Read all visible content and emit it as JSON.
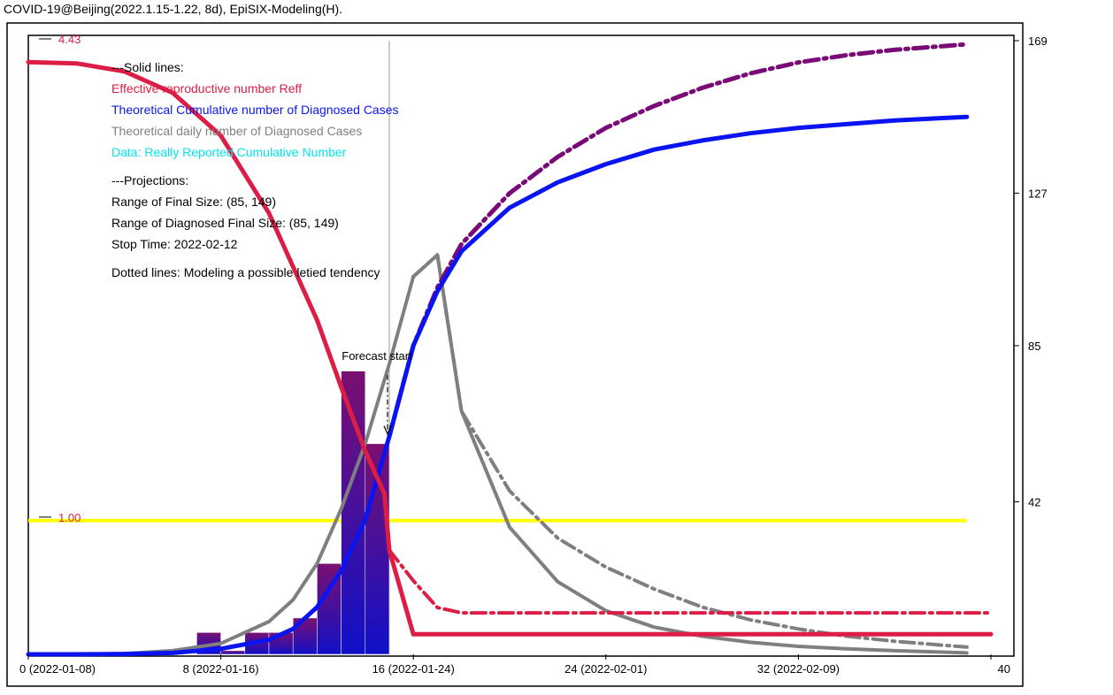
{
  "title": "COVID-19@Beijing(2022.1.15-1.22, 8d), EpiSIX-Modeling(H).",
  "legend": {
    "solid_header": "---Solid lines:",
    "reff_label": "Effective reproductive number Reff",
    "cum_label": "Theoretical Cumulative number of Diagnosed Cases",
    "daily_label": "Theoretical daily number of Diagnosed Cases",
    "data_label": "Data: Really Reported Cumulative Number",
    "proj_header": "---Projections:",
    "final_size": "Range of Final Size: (85, 149)",
    "diag_final_size": "Range of Diagnosed Final Size: (85, 149)",
    "stop_time": "Stop Time: 2022-02-12",
    "dotted_note": "Dotted lines: Modeling a possible letied tendency"
  },
  "colors": {
    "reff": "#dc1e46",
    "cumulative": "#0a14f0",
    "daily": "#7f7f7f",
    "data": "#00e5ee",
    "projection": "#7a0a78",
    "threshold": "#ffff00",
    "bar_top": "#7a1070",
    "bar_bottom": "#1010c8"
  },
  "chart_data": {
    "type": "line",
    "xlim": [
      0,
      40
    ],
    "x_ticks": [
      {
        "value": 0,
        "label": "0 (2022-01-08)"
      },
      {
        "value": 8,
        "label": "8 (2022-01-16)"
      },
      {
        "value": 16,
        "label": "16 (2022-01-24)"
      },
      {
        "value": 24,
        "label": "24 (2022-02-01)"
      },
      {
        "value": 32,
        "label": "32 (2022-02-09)"
      },
      {
        "value": 40,
        "label": "40"
      }
    ],
    "y_right": {
      "lim": [
        0,
        169
      ],
      "ticks": [
        42,
        85,
        127,
        169
      ]
    },
    "y_left": {
      "lim": [
        0,
        4.63
      ],
      "labels": [
        {
          "value": 4.43,
          "label": "4.43"
        },
        {
          "value": 1.0,
          "label": "1.00"
        }
      ]
    },
    "forecast_start": {
      "x": 15,
      "label": "Forecast start"
    },
    "threshold_reff": 1.0,
    "reff_solid": [
      [
        0,
        4.43
      ],
      [
        2,
        4.42
      ],
      [
        4,
        4.36
      ],
      [
        6,
        4.2
      ],
      [
        8,
        3.88
      ],
      [
        10,
        3.3
      ],
      [
        12,
        2.5
      ],
      [
        13,
        2.0
      ],
      [
        14,
        1.52
      ],
      [
        14.8,
        1.2
      ],
      [
        15,
        0.78
      ],
      [
        16,
        0.15
      ],
      [
        40,
        0.15
      ]
    ],
    "reff_dashed": [
      [
        15,
        0.78
      ],
      [
        16,
        0.55
      ],
      [
        17,
        0.35
      ],
      [
        18,
        0.31
      ],
      [
        40,
        0.31
      ]
    ],
    "cumulative_solid": [
      [
        0,
        0
      ],
      [
        2,
        0
      ],
      [
        4,
        0.1
      ],
      [
        6,
        0.4
      ],
      [
        8,
        1.5
      ],
      [
        10,
        4
      ],
      [
        11,
        7
      ],
      [
        12,
        13
      ],
      [
        13,
        23
      ],
      [
        14,
        37
      ],
      [
        15,
        60
      ],
      [
        16,
        85
      ],
      [
        17,
        100
      ],
      [
        18,
        111
      ],
      [
        20,
        123
      ],
      [
        22,
        130
      ],
      [
        24,
        135
      ],
      [
        26,
        139
      ],
      [
        28,
        141.5
      ],
      [
        30,
        143.5
      ],
      [
        32,
        145
      ],
      [
        34,
        146
      ],
      [
        36,
        147
      ],
      [
        38,
        147.7
      ],
      [
        39,
        148
      ]
    ],
    "cumulative_dashed": [
      [
        15,
        60
      ],
      [
        16,
        85
      ],
      [
        17,
        101
      ],
      [
        18,
        113
      ],
      [
        20,
        127
      ],
      [
        22,
        137
      ],
      [
        24,
        145
      ],
      [
        26,
        151
      ],
      [
        28,
        156
      ],
      [
        30,
        160
      ],
      [
        32,
        163
      ],
      [
        34,
        165
      ],
      [
        36,
        166.5
      ],
      [
        38,
        167.5
      ],
      [
        39,
        168
      ]
    ],
    "daily_solid": [
      [
        0,
        0
      ],
      [
        2,
        0
      ],
      [
        4,
        0.2
      ],
      [
        6,
        1
      ],
      [
        8,
        3
      ],
      [
        10,
        9
      ],
      [
        11,
        15
      ],
      [
        12,
        25
      ],
      [
        13,
        40
      ],
      [
        14,
        58
      ],
      [
        15,
        80
      ],
      [
        16,
        104
      ],
      [
        17,
        110
      ],
      [
        18,
        67
      ],
      [
        20,
        35
      ],
      [
        22,
        20
      ],
      [
        24,
        12
      ],
      [
        26,
        7.5
      ],
      [
        28,
        5
      ],
      [
        30,
        3.3
      ],
      [
        32,
        2.2
      ],
      [
        34,
        1.5
      ],
      [
        36,
        1
      ],
      [
        38,
        0.6
      ],
      [
        39,
        0.4
      ]
    ],
    "daily_dashed": [
      [
        16,
        104
      ],
      [
        17,
        110
      ],
      [
        18,
        67
      ],
      [
        20,
        45
      ],
      [
        22,
        32
      ],
      [
        24,
        24
      ],
      [
        26,
        18
      ],
      [
        28,
        13
      ],
      [
        30,
        9.5
      ],
      [
        32,
        7
      ],
      [
        34,
        5
      ],
      [
        36,
        3.6
      ],
      [
        38,
        2.5
      ],
      [
        39,
        2
      ]
    ],
    "bars": [
      {
        "x": 7.5,
        "value": 6
      },
      {
        "x": 8.5,
        "value": 1
      },
      {
        "x": 9.5,
        "value": 6
      },
      {
        "x": 10.5,
        "value": 6
      },
      {
        "x": 11.5,
        "value": 10
      },
      {
        "x": 12.5,
        "value": 25
      },
      {
        "x": 13.5,
        "value": 78
      },
      {
        "x": 14.5,
        "value": 58
      }
    ]
  }
}
